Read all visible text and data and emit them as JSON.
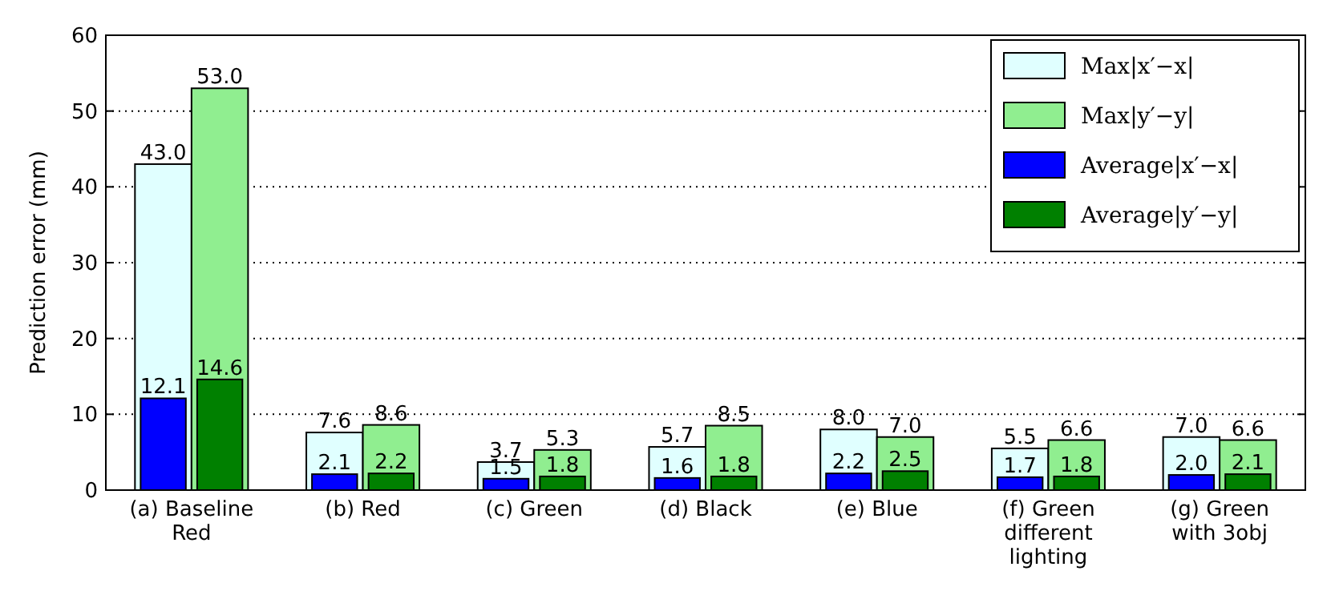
{
  "chart_data": {
    "type": "bar",
    "ylabel": "Prediction error (mm)",
    "categories": [
      "(a) Baseline\nRed",
      "(b) Red",
      "(c) Green",
      "(d) Black",
      "(e) Blue",
      "(f) Green\ndifferent\nlighting",
      "(g) Green\nwith 3obj"
    ],
    "series": [
      {
        "name": "Max|x′−x|",
        "color": "#e0ffff",
        "values": [
          43.0,
          7.6,
          3.7,
          5.7,
          8.0,
          5.5,
          7.0
        ],
        "value_labels": [
          "43.0",
          "7.6",
          "3.7",
          "5.7",
          "8.0",
          "5.5",
          "7.0"
        ]
      },
      {
        "name": "Max|y′−y|",
        "color": "#90ee90",
        "values": [
          53.0,
          8.6,
          5.3,
          8.5,
          7.0,
          6.6,
          6.6
        ],
        "value_labels": [
          "53.0",
          "8.6",
          "5.3",
          "8.5",
          "7.0",
          "6.6",
          "6.6"
        ]
      },
      {
        "name": "Average|x′−x|",
        "color": "#0000ff",
        "values": [
          12.1,
          2.1,
          1.5,
          1.6,
          2.2,
          1.7,
          2.0
        ],
        "value_labels": [
          "12.1",
          "2.1",
          "1.5",
          "1.6",
          "2.2",
          "1.7",
          "2.0"
        ]
      },
      {
        "name": "Average|y′−y|",
        "color": "#008000",
        "values": [
          14.6,
          2.2,
          1.8,
          1.8,
          2.5,
          1.8,
          2.1
        ],
        "value_labels": [
          "14.6",
          "2.2",
          "1.8",
          "1.8",
          "2.5",
          "1.8",
          "2.1"
        ]
      }
    ],
    "ylim": [
      0,
      60
    ],
    "yticks": [
      0,
      10,
      20,
      30,
      40,
      50,
      60
    ],
    "grid": "y",
    "legend": "top right"
  }
}
